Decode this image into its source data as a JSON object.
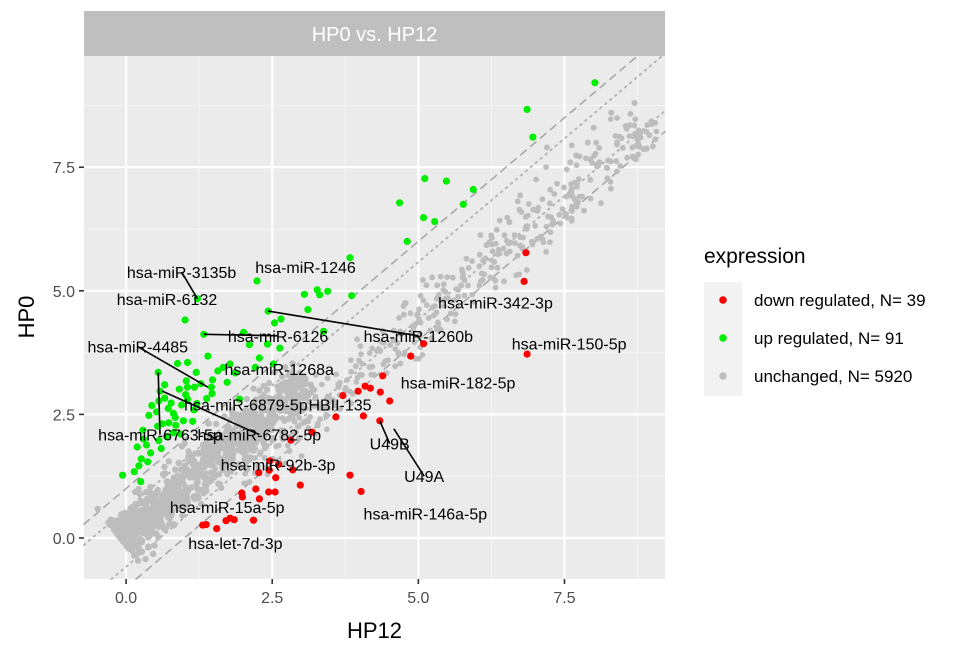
{
  "chart_data": {
    "type": "scatter",
    "title": "HP0 vs. HP12",
    "xlabel": "HP12",
    "ylabel": "HP0",
    "xlim": [
      -0.72,
      9.22
    ],
    "ylim": [
      -0.83,
      9.75
    ],
    "x_ticks": [
      {
        "value": 0.0,
        "label": "0.0"
      },
      {
        "value": 2.5,
        "label": "2.5"
      },
      {
        "value": 5.0,
        "label": "5.0"
      },
      {
        "value": 7.5,
        "label": "7.5"
      }
    ],
    "y_ticks": [
      {
        "value": 0.0,
        "label": "0.0"
      },
      {
        "value": 2.5,
        "label": "2.5"
      },
      {
        "value": 5.0,
        "label": "5.0"
      },
      {
        "value": 7.5,
        "label": "7.5"
      }
    ],
    "grid": true,
    "legend_position": "right",
    "legend_title": "expression",
    "reference_lines": [
      {
        "style": "dashed",
        "slope": 1,
        "intercept": 1
      },
      {
        "style": "dashed",
        "slope": 1,
        "intercept": -1
      },
      {
        "style": "dotted",
        "slope": 1,
        "intercept": 0.58
      },
      {
        "style": "dotted",
        "slope": 1,
        "intercept": -0.58
      }
    ],
    "series": [
      {
        "name": "down regulated, N= 39",
        "color": "#ff0000",
        "points": [
          [
            6.84,
            5.77
          ],
          [
            6.81,
            5.19
          ],
          [
            6.86,
            3.72
          ],
          [
            5.09,
            3.93
          ],
          [
            4.87,
            3.68
          ],
          [
            4.39,
            3.28
          ],
          [
            4.18,
            3.03
          ],
          [
            4.09,
            3.07
          ],
          [
            4.35,
            2.95
          ],
          [
            3.97,
            2.97
          ],
          [
            4.51,
            2.77
          ],
          [
            3.71,
            2.88
          ],
          [
            4.06,
            2.47
          ],
          [
            3.59,
            2.45
          ],
          [
            4.34,
            2.37
          ],
          [
            3.18,
            2.14
          ],
          [
            2.82,
            1.98
          ],
          [
            2.46,
            1.56
          ],
          [
            2.85,
            1.38
          ],
          [
            2.61,
            1.49
          ],
          [
            2.45,
            1.37
          ],
          [
            2.27,
            1.32
          ],
          [
            2.56,
            1.22
          ],
          [
            2.98,
            1.07
          ],
          [
            3.83,
            1.27
          ],
          [
            4.02,
            0.94
          ],
          [
            2.22,
            0.99
          ],
          [
            1.98,
            0.91
          ],
          [
            1.99,
            0.83
          ],
          [
            2.44,
            0.93
          ],
          [
            2.55,
            0.93
          ],
          [
            2.28,
            0.79
          ],
          [
            1.37,
            0.27
          ],
          [
            1.55,
            0.19
          ],
          [
            1.31,
            0.26
          ],
          [
            1.71,
            0.35
          ],
          [
            1.85,
            0.37
          ],
          [
            1.78,
            0.4
          ],
          [
            2.18,
            0.36
          ]
        ]
      },
      {
        "name": "up regulated, N= 91",
        "color": "#00ee00",
        "points": [
          [
            8.02,
            9.21
          ],
          [
            6.86,
            8.67
          ],
          [
            6.96,
            8.11
          ],
          [
            5.94,
            7.05
          ],
          [
            5.48,
            7.22
          ],
          [
            5.11,
            7.27
          ],
          [
            4.68,
            6.78
          ],
          [
            5.09,
            6.48
          ],
          [
            5.28,
            6.4
          ],
          [
            5.77,
            6.75
          ],
          [
            4.81,
            6.0
          ],
          [
            3.83,
            5.67
          ],
          [
            3.27,
            5.02
          ],
          [
            3.45,
            4.99
          ],
          [
            3.31,
            4.92
          ],
          [
            3.86,
            4.9
          ],
          [
            3.05,
            4.93
          ],
          [
            2.24,
            5.2
          ],
          [
            2.43,
            4.59
          ],
          [
            2.54,
            4.35
          ],
          [
            2.65,
            4.43
          ],
          [
            1.22,
            4.84
          ],
          [
            1.01,
            4.41
          ],
          [
            1.33,
            4.12
          ],
          [
            2.01,
            4.16
          ],
          [
            2.11,
            3.91
          ],
          [
            2.63,
            3.84
          ],
          [
            1.4,
            3.68
          ],
          [
            0.88,
            3.53
          ],
          [
            1.05,
            3.55
          ],
          [
            0.55,
            3.35
          ],
          [
            1.2,
            3.35
          ],
          [
            1.66,
            3.45
          ],
          [
            2.21,
            3.45
          ],
          [
            2.52,
            3.52
          ],
          [
            1.48,
            3.2
          ],
          [
            1.87,
            3.34
          ],
          [
            1.73,
            3.15
          ],
          [
            1.46,
            3.05
          ],
          [
            0.91,
            3.01
          ],
          [
            1.05,
            3.05
          ],
          [
            1.17,
            3.05
          ],
          [
            0.66,
            2.83
          ],
          [
            1.38,
            2.82
          ],
          [
            1.94,
            2.81
          ],
          [
            0.44,
            2.68
          ],
          [
            0.56,
            2.77
          ],
          [
            0.77,
            2.73
          ],
          [
            0.95,
            2.69
          ],
          [
            1.05,
            2.81
          ],
          [
            1.21,
            2.72
          ],
          [
            1.16,
            2.59
          ],
          [
            0.81,
            2.52
          ],
          [
            0.52,
            2.55
          ],
          [
            0.39,
            2.48
          ],
          [
            0.84,
            2.44
          ],
          [
            0.98,
            2.37
          ],
          [
            1.14,
            2.36
          ],
          [
            0.73,
            2.33
          ],
          [
            0.62,
            2.31
          ],
          [
            0.54,
            2.26
          ],
          [
            0.85,
            2.28
          ],
          [
            0.29,
            2.18
          ],
          [
            0.81,
            2.13
          ],
          [
            0.94,
            2.1
          ],
          [
            0.69,
            2.05
          ],
          [
            0.3,
            2.0
          ],
          [
            0.56,
            1.97
          ],
          [
            0.35,
            1.88
          ],
          [
            0.19,
            1.84
          ],
          [
            0.6,
            1.81
          ],
          [
            0.42,
            1.72
          ],
          [
            0.26,
            1.6
          ],
          [
            0.37,
            1.54
          ],
          [
            0.22,
            1.46
          ],
          [
            0.14,
            1.34
          ],
          [
            -0.06,
            1.27
          ],
          [
            0.25,
            1.14
          ],
          [
            0.58,
            2.97
          ],
          [
            1.03,
            3.18
          ],
          [
            1.47,
            2.92
          ],
          [
            1.57,
            3.38
          ],
          [
            2.28,
            3.64
          ],
          [
            1.78,
            3.52
          ],
          [
            0.72,
            2.62
          ],
          [
            1.02,
            2.9
          ],
          [
            1.28,
            3.12
          ],
          [
            0.66,
            3.1
          ],
          [
            2.42,
            3.92
          ],
          [
            3.11,
            4.62
          ],
          [
            3.38,
            4.18
          ]
        ]
      },
      {
        "name": "unchanged, N= 5920",
        "color": "#bdbdbd",
        "points": []
      }
    ],
    "annotations": [
      {
        "text": "hsa-miR-3135b",
        "label_x": 0.95,
        "label_y": 5.38,
        "anchor": "middle",
        "leader_to": [
          1.22,
          4.84
        ]
      },
      {
        "text": "hsa-miR-1246",
        "label_x": 3.07,
        "label_y": 5.48,
        "anchor": "middle",
        "leader_to": null
      },
      {
        "text": "hsa-miR-6132",
        "label_x": 0.7,
        "label_y": 4.83,
        "anchor": "middle",
        "leader_to": null
      },
      {
        "text": "hsa-miR-6126",
        "label_x": 2.6,
        "label_y": 4.09,
        "anchor": "middle",
        "leader_to": [
          1.33,
          4.12
        ]
      },
      {
        "text": "hsa-miR-1260b",
        "label_x": 5.0,
        "label_y": 4.09,
        "anchor": "middle",
        "leader_to": [
          2.43,
          4.59
        ]
      },
      {
        "text": "hsa-miR-342-3p",
        "label_x": 6.32,
        "label_y": 4.76,
        "anchor": "middle",
        "leader_to": null
      },
      {
        "text": "hsa-miR-150-5p",
        "label_x": 7.58,
        "label_y": 3.93,
        "anchor": "middle",
        "leader_to": null
      },
      {
        "text": "hsa-miR-4485",
        "label_x": 0.2,
        "label_y": 3.87,
        "anchor": "middle",
        "leader_to": [
          1.4,
          3.05
        ]
      },
      {
        "text": "hsa-miR-1268a",
        "label_x": 2.62,
        "label_y": 3.42,
        "anchor": "middle",
        "leader_to": null
      },
      {
        "text": "hsa-miR-182-5p",
        "label_x": 5.68,
        "label_y": 3.15,
        "anchor": "middle",
        "leader_to": null
      },
      {
        "text": "hsa-miR-6879-5p",
        "label_x": 2.05,
        "label_y": 2.7,
        "anchor": "middle",
        "leader_to": null
      },
      {
        "text": "HBII-135",
        "label_x": 3.66,
        "label_y": 2.7,
        "anchor": "middle",
        "leader_to": null
      },
      {
        "text": "hsa-miR-6763-5p",
        "label_x": 0.58,
        "label_y": 2.09,
        "anchor": "middle",
        "leader_to": [
          0.55,
          3.35
        ]
      },
      {
        "text": "hsa-miR-6782-5p",
        "label_x": 2.28,
        "label_y": 2.09,
        "anchor": "middle",
        "leader_to": [
          0.62,
          2.97
        ]
      },
      {
        "text": "U49B",
        "label_x": 4.51,
        "label_y": 1.91,
        "anchor": "middle",
        "leader_to": [
          4.34,
          2.37
        ]
      },
      {
        "text": "hsa-miR-92b-3p",
        "label_x": 2.6,
        "label_y": 1.49,
        "anchor": "middle",
        "leader_to": null
      },
      {
        "text": "U49A",
        "label_x": 5.1,
        "label_y": 1.25,
        "anchor": "middle",
        "leader_to": [
          4.58,
          2.21
        ]
      },
      {
        "text": "hsa-miR-15a-5p",
        "label_x": 1.73,
        "label_y": 0.63,
        "anchor": "middle",
        "leader_to": null
      },
      {
        "text": "hsa-miR-146a-5p",
        "label_x": 5.12,
        "label_y": 0.5,
        "anchor": "middle",
        "leader_to": null
      },
      {
        "text": "hsa-let-7d-3p",
        "label_x": 1.87,
        "label_y": -0.1,
        "anchor": "middle",
        "leader_to": null
      }
    ]
  }
}
